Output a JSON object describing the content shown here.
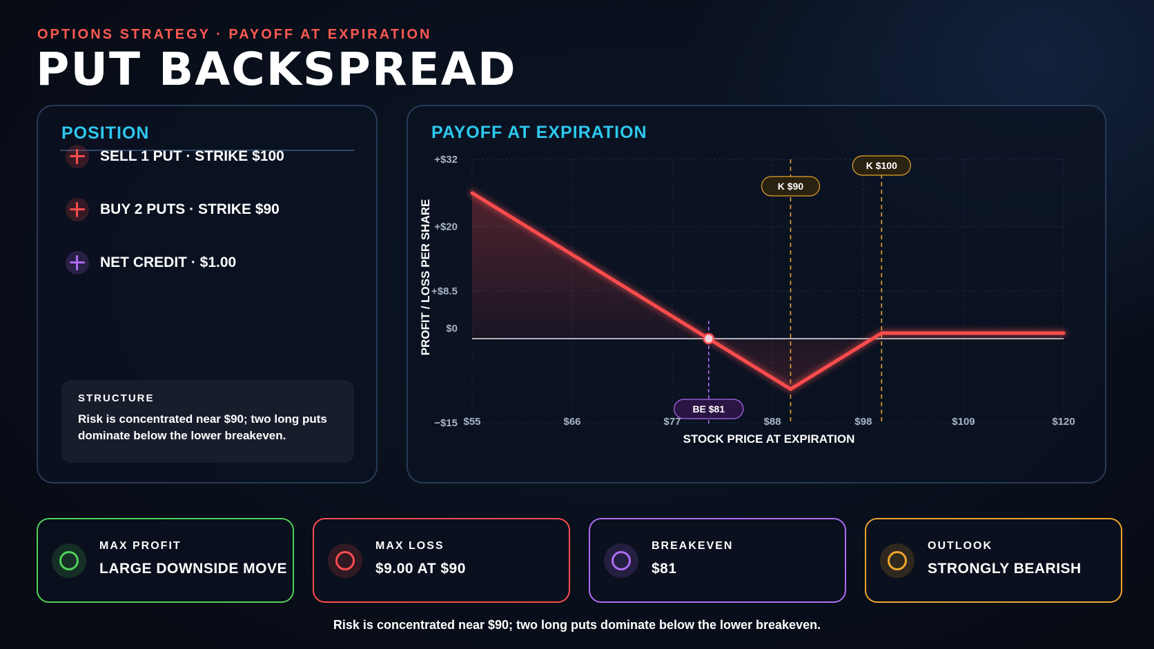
{
  "header": {
    "kicker": "OPTIONS STRATEGY · PAYOFF AT EXPIRATION",
    "title": "PUT BACKSPREAD"
  },
  "position": {
    "heading": "POSITION",
    "items": [
      {
        "label": "SELL 1 PUT · STRIKE $100",
        "icon": "plus-icon",
        "color": "#ff4d4d"
      },
      {
        "label": "BUY 2 PUTS · STRIKE $90",
        "icon": "plus-icon",
        "color": "#ff4d4d"
      },
      {
        "label": "NET CREDIT · $1.00",
        "icon": "plus-icon",
        "color": "#b06cf5"
      }
    ],
    "structure": {
      "title": "STRUCTURE",
      "text": "Risk is concentrated near $90; two long puts dominate below the lower breakeven."
    }
  },
  "chart_panel": {
    "heading": "PAYOFF AT EXPIRATION"
  },
  "chart_data": {
    "type": "line",
    "title": "PAYOFF AT EXPIRATION",
    "xlabel": "STOCK PRICE AT EXPIRATION",
    "ylabel": "PROFIT / LOSS PER SHARE",
    "xlim": [
      55,
      120
    ],
    "ylim": [
      -15,
      32
    ],
    "x_ticks": [
      {
        "value": 55,
        "label": "$55"
      },
      {
        "value": 66,
        "label": "$66"
      },
      {
        "value": 77,
        "label": "$77"
      },
      {
        "value": 88,
        "label": "$88"
      },
      {
        "value": 98,
        "label": "$98"
      },
      {
        "value": 109,
        "label": "$109"
      },
      {
        "value": 120,
        "label": "$120"
      }
    ],
    "y_ticks": [
      {
        "value": 32,
        "label": "+$32"
      },
      {
        "value": 20,
        "label": "+$20"
      },
      {
        "value": 8.5,
        "label": "+$8.5"
      },
      {
        "value": 0,
        "label": "$0"
      },
      {
        "value": -15,
        "label": "−$15"
      }
    ],
    "grid": true,
    "series": [
      {
        "color": "#ff4d4d",
        "points": [
          [
            55,
            26
          ],
          [
            81,
            0
          ],
          [
            90,
            -9
          ],
          [
            100,
            1
          ],
          [
            120,
            1
          ]
        ]
      }
    ],
    "strikes": [
      {
        "value": 90,
        "label": "K $90",
        "color": "#e6a52c"
      },
      {
        "value": 100,
        "label": "K $100",
        "color": "#e6a52c"
      }
    ],
    "breakeven": {
      "value": 81,
      "label": "BE $81",
      "color": "#b06cf5"
    }
  },
  "stats": [
    {
      "label": "MAX PROFIT",
      "value": "LARGE DOWNSIDE MOVE",
      "color": "#4fd15a",
      "icon": "circle-icon"
    },
    {
      "label": "MAX LOSS",
      "value": "$9.00 AT $90",
      "color": "#ff4d4d",
      "icon": "circle-icon"
    },
    {
      "label": "BREAKEVEN",
      "value": "$81",
      "color": "#b06cf5",
      "icon": "circle-icon"
    },
    {
      "label": "OUTLOOK",
      "value": "STRONGLY BEARISH",
      "color": "#f0a62c",
      "icon": "circle-icon"
    }
  ],
  "footer": "Risk is concentrated near $90; two long puts dominate below the lower breakeven."
}
